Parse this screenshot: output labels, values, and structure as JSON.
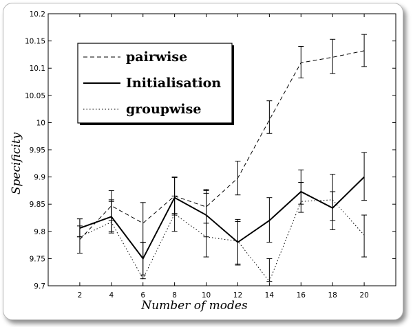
{
  "chart_data": {
    "type": "line",
    "title": "",
    "xlabel": "Number of modes",
    "ylabel": "Specificity",
    "x": [
      2,
      4,
      6,
      8,
      10,
      12,
      14,
      16,
      18,
      20
    ],
    "xlim": [
      0,
      22
    ],
    "ylim": [
      9.7,
      10.2
    ],
    "xticks": [
      "2",
      "4",
      "6",
      "8",
      "10",
      "12",
      "14",
      "16",
      "18",
      "20"
    ],
    "yticks": [
      "9.7",
      "9.75",
      "9.8",
      "9.85",
      "9.9",
      "9.95",
      "10",
      "10.05",
      "10.1",
      "10.15",
      "10.2"
    ],
    "grid": false,
    "legend_position": "top-left",
    "series": [
      {
        "name": "pairwise",
        "style": "dashed",
        "values": [
          9.785,
          9.847,
          9.815,
          9.865,
          9.845,
          9.898,
          10.005,
          10.11,
          10.12,
          10.132
        ],
        "err_low": [
          9.76,
          9.82,
          9.78,
          9.833,
          9.815,
          9.867,
          9.98,
          10.082,
          10.09,
          10.103
        ],
        "err_high": [
          9.81,
          9.875,
          9.853,
          9.899,
          9.877,
          9.929,
          10.04,
          10.14,
          10.153,
          10.162
        ]
      },
      {
        "name": "Initialisation",
        "style": "solid",
        "values": [
          9.806,
          9.827,
          9.75,
          9.862,
          9.83,
          9.78,
          9.82,
          9.873,
          9.843,
          9.9
        ],
        "err_low": [
          9.79,
          9.8,
          9.72,
          9.83,
          9.79,
          9.74,
          9.78,
          9.85,
          9.82,
          9.857
        ],
        "err_high": [
          9.823,
          9.855,
          9.78,
          9.9,
          9.87,
          9.818,
          9.862,
          9.913,
          9.905,
          9.945
        ]
      },
      {
        "name": "groupwise",
        "style": "dotted",
        "values": [
          9.79,
          9.817,
          9.713,
          9.832,
          9.79,
          9.782,
          9.708,
          9.855,
          9.858,
          9.793
        ],
        "err_low": [
          9.79,
          9.797,
          9.713,
          9.8,
          9.753,
          9.738,
          9.708,
          9.835,
          9.803,
          9.753
        ],
        "err_high": [
          9.823,
          9.858,
          9.78,
          9.865,
          9.875,
          9.822,
          9.75,
          9.89,
          9.873,
          9.83
        ]
      }
    ]
  }
}
